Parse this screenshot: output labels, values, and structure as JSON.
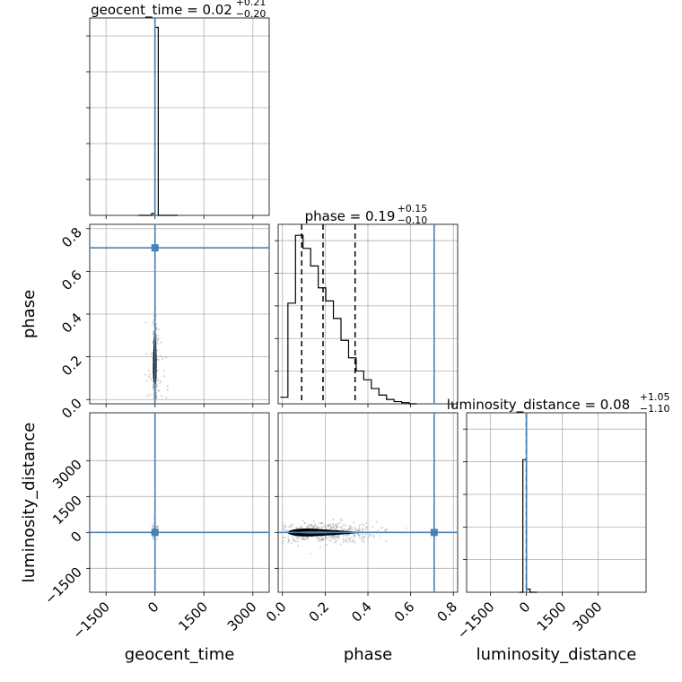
{
  "colors": {
    "truth": "#4682b4",
    "hist": "#000000",
    "grid": "#b0b0b0",
    "samples": "#999999"
  },
  "chart_data": {
    "type": "corner",
    "truths": {
      "geocent_time": 0,
      "phase": 0.71,
      "luminosity_distance": 0
    },
    "parameters": [
      {
        "key": "geocent_time",
        "label": "geocent_time",
        "range": [
          -2000,
          3500
        ],
        "ticks": [
          "−1500",
          "0",
          "1500",
          "3000"
        ],
        "title": {
          "text": "geocent_time = 0.02",
          "plus": "+0.21",
          "minus": "−0.20"
        },
        "quantiles": [
          -0.18,
          0.02,
          0.23
        ],
        "hist": {
          "edges_start": -500,
          "bin_width": 100,
          "counts": [
            0,
            0,
            0,
            0,
            0.01,
            1.0,
            0,
            0,
            0,
            0,
            0,
            0
          ]
        }
      },
      {
        "key": "phase",
        "label": "phase",
        "range": [
          -0.02,
          0.82
        ],
        "ticks": [
          "0.0",
          "0.2",
          "0.4",
          "0.6",
          "0.8"
        ],
        "title": {
          "text": "phase = 0.19",
          "plus": "+0.15",
          "minus": "−0.10"
        },
        "quantiles": [
          0.09,
          0.19,
          0.34
        ],
        "hist": {
          "edges_start": -0.01,
          "bin_width": 0.0355,
          "counts": [
            0.03,
            0.46,
            0.77,
            0.71,
            0.63,
            0.53,
            0.47,
            0.39,
            0.29,
            0.21,
            0.15,
            0.11,
            0.07,
            0.04,
            0.02,
            0.01,
            0.005,
            0
          ]
        }
      },
      {
        "key": "luminosity_distance",
        "label": "luminosity_distance",
        "range": [
          -2500,
          5000
        ],
        "ticks": [
          "−1500",
          "0",
          "1500",
          "3000"
        ],
        "title": {
          "text": "luminosity_distance = 0.08",
          "plus": "+1.05",
          "minus": "−1.10"
        },
        "quantiles": [
          -1.02,
          0.08,
          1.13
        ],
        "hist": {
          "edges_start": -300,
          "bin_width": 150,
          "counts": [
            0,
            0.85,
            0.02,
            0,
            0
          ]
        }
      }
    ],
    "offdiag": {
      "phase_vs_geocent_time": {
        "y_ticks": [
          "0.0",
          "0.2",
          "0.4",
          "0.6",
          "0.8"
        ]
      },
      "luminosity_distance_vs_geocent_time": {
        "y_ticks": [
          "−1500",
          "0",
          "1500",
          "3000"
        ]
      }
    }
  }
}
